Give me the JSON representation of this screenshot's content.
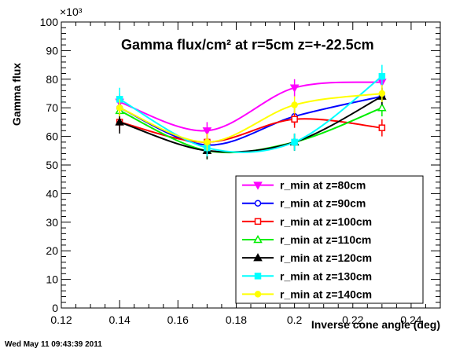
{
  "chart_data": {
    "type": "line",
    "title": "Gamma flux/cm² at r=5cm z=+-22.5cm",
    "xlabel": "Inverse cone angle (deg)",
    "ylabel": "Gamma flux",
    "y_exponent": "×10³",
    "xlim": [
      0.12,
      0.25
    ],
    "ylim": [
      0,
      100
    ],
    "x_ticks": [
      "0.12",
      "0.14",
      "0.16",
      "0.18",
      "0.2",
      "0.22",
      "0.24"
    ],
    "y_ticks": [
      "0",
      "10",
      "20",
      "30",
      "40",
      "50",
      "60",
      "70",
      "80",
      "90",
      "100"
    ],
    "grid": false,
    "legend_position": "bottom-right",
    "x": [
      0.14,
      0.17,
      0.2,
      0.23
    ],
    "series": [
      {
        "name": "r_min at z=80cm",
        "color": "#ff00ff",
        "marker": "triangle-down",
        "values": [
          72,
          62,
          77,
          79
        ],
        "errors": [
          3,
          3,
          3,
          3
        ]
      },
      {
        "name": "r_min at z=90cm",
        "color": "#0000ff",
        "marker": "circle-open",
        "values": [
          70,
          57,
          67,
          74
        ],
        "errors": [
          3,
          3,
          3,
          3
        ]
      },
      {
        "name": "r_min at z=100cm",
        "color": "#ff0000",
        "marker": "square-open",
        "values": [
          65,
          58,
          66,
          63
        ],
        "errors": [
          3,
          3,
          3,
          3
        ]
      },
      {
        "name": "r_min at z=110cm",
        "color": "#00ee00",
        "marker": "triangle-up-open",
        "values": [
          69,
          55,
          58,
          70
        ],
        "errors": [
          3,
          3,
          3,
          3
        ]
      },
      {
        "name": "r_min at z=120cm",
        "color": "#000000",
        "marker": "triangle-up",
        "values": [
          65,
          55,
          58,
          74
        ],
        "errors": [
          4,
          3,
          3,
          3
        ]
      },
      {
        "name": "r_min at z=130cm",
        "color": "#00ffff",
        "marker": "square",
        "values": [
          73,
          56,
          58,
          81
        ],
        "errors": [
          4,
          3,
          3,
          4
        ]
      },
      {
        "name": "r_min at z=140cm",
        "color": "#ffff00",
        "marker": "circle",
        "values": [
          70,
          58,
          71,
          75
        ],
        "errors": [
          3,
          3,
          3,
          3
        ]
      }
    ]
  },
  "footer": {
    "timestamp": "Wed May 11 09:43:39 2011"
  }
}
